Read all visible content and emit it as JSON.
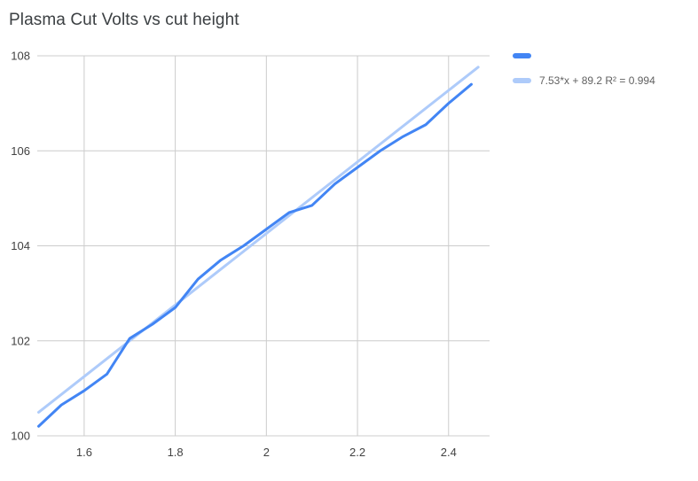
{
  "title": "Plasma Cut Volts vs cut height",
  "colors": {
    "background": "#ffffff",
    "series": "#4285f4",
    "trendline": "#aecbfa",
    "gridline": "#cccccc",
    "axis_text": "#424242",
    "title_text": "#3c4043",
    "legend_text": "#616161"
  },
  "legend": {
    "items": [
      {
        "label": "",
        "color": "#4285f4",
        "name": "series-swatch"
      },
      {
        "label": "7.53*x + 89.2 R² = 0.994",
        "color": "#aecbfa",
        "name": "trendline-swatch"
      }
    ]
  },
  "chart_data": {
    "type": "line",
    "title": "Plasma Cut Volts vs cut height",
    "xlabel": "",
    "ylabel": "",
    "x": [
      1.5,
      1.55,
      1.6,
      1.65,
      1.7,
      1.75,
      1.8,
      1.85,
      1.9,
      1.95,
      2.0,
      2.05,
      2.1,
      2.15,
      2.2,
      2.25,
      2.3,
      2.35,
      2.4,
      2.45
    ],
    "series": [
      {
        "name": "",
        "values": [
          100.2,
          100.65,
          100.95,
          101.3,
          102.05,
          102.35,
          102.7,
          103.3,
          103.7,
          104.0,
          104.35,
          104.7,
          104.85,
          105.3,
          105.65,
          106.0,
          106.3,
          106.55,
          107.0,
          107.4
        ]
      }
    ],
    "trendline": {
      "label": "7.53*x + 89.2 R² = 0.994",
      "slope": 7.53,
      "intercept": 89.2,
      "r2": 0.994
    },
    "xlim": [
      1.497,
      2.49
    ],
    "ylim": [
      100,
      108
    ],
    "x_ticks": [
      1.6,
      1.8,
      2,
      2.2,
      2.4
    ],
    "x_tick_labels": [
      "1.6",
      "1.8",
      "2",
      "2.2",
      "2.4"
    ],
    "y_ticks": [
      100,
      102,
      104,
      106,
      108
    ],
    "y_tick_labels": [
      "100",
      "102",
      "104",
      "106",
      "108"
    ],
    "grid": true,
    "legend_position": "right-top"
  }
}
